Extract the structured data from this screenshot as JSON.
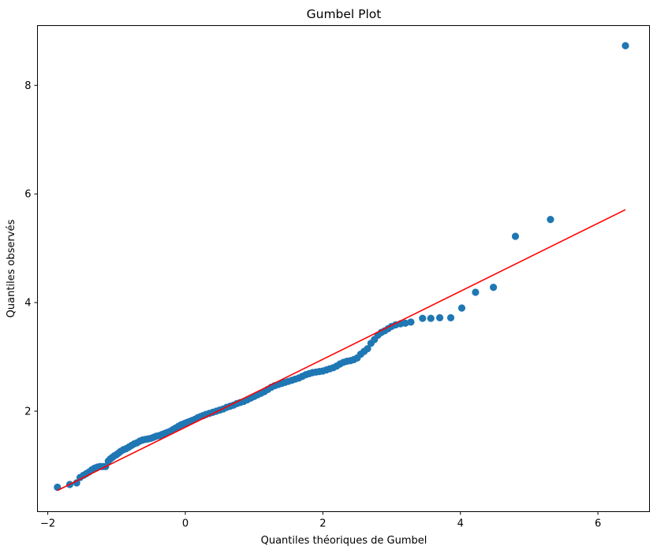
{
  "chart_data": {
    "type": "scatter",
    "title": "Gumbel Plot",
    "xlabel": "Quantiles théoriques de Gumbel",
    "ylabel": "Quantiles observés",
    "xlim": [
      -2.15,
      6.75
    ],
    "ylim": [
      0.15,
      9.1
    ],
    "xticks": [
      -2,
      0,
      2,
      4,
      6
    ],
    "yticks": [
      2,
      4,
      6,
      8
    ],
    "grid": false,
    "colors": {
      "points": "#1f77b4",
      "fit_line": "#ff0000",
      "axes": "#000000"
    },
    "series": [
      {
        "kind": "points",
        "x": [
          -1.86,
          -1.68,
          -1.58,
          -1.53,
          -1.48,
          -1.44,
          -1.4,
          -1.36,
          -1.32,
          -1.28,
          -1.24,
          -1.2,
          -1.16,
          -1.12,
          -1.09,
          -1.06,
          -1.03,
          -1.0,
          -0.97,
          -0.94,
          -0.9,
          -0.86,
          -0.82,
          -0.78,
          -0.74,
          -0.7,
          -0.66,
          -0.62,
          -0.58,
          -0.54,
          -0.5,
          -0.46,
          -0.42,
          -0.38,
          -0.34,
          -0.3,
          -0.26,
          -0.22,
          -0.18,
          -0.14,
          -0.1,
          -0.06,
          -0.02,
          0.02,
          0.06,
          0.1,
          0.14,
          0.18,
          0.22,
          0.26,
          0.3,
          0.35,
          0.4,
          0.45,
          0.5,
          0.55,
          0.6,
          0.65,
          0.7,
          0.75,
          0.8,
          0.85,
          0.9,
          0.95,
          1.0,
          1.05,
          1.1,
          1.15,
          1.2,
          1.25,
          1.3,
          1.35,
          1.4,
          1.45,
          1.5,
          1.55,
          1.6,
          1.65,
          1.7,
          1.75,
          1.8,
          1.85,
          1.9,
          1.95,
          2.0,
          2.05,
          2.1,
          2.15,
          2.2,
          2.25,
          2.3,
          2.35,
          2.4,
          2.45,
          2.5,
          2.55,
          2.6,
          2.65,
          2.7,
          2.75,
          2.8,
          2.85,
          2.9,
          2.95,
          3.0,
          3.06,
          3.13,
          3.2,
          3.28,
          3.45,
          3.57,
          3.7,
          3.86,
          4.02,
          4.22,
          4.48,
          4.8,
          5.31,
          6.4
        ],
        "y": [
          0.6,
          0.65,
          0.68,
          0.78,
          0.82,
          0.85,
          0.88,
          0.92,
          0.95,
          0.97,
          0.98,
          0.98,
          0.98,
          1.08,
          1.12,
          1.15,
          1.18,
          1.2,
          1.23,
          1.26,
          1.29,
          1.31,
          1.34,
          1.37,
          1.4,
          1.42,
          1.45,
          1.47,
          1.48,
          1.49,
          1.5,
          1.52,
          1.54,
          1.55,
          1.57,
          1.59,
          1.61,
          1.63,
          1.66,
          1.69,
          1.72,
          1.75,
          1.77,
          1.79,
          1.81,
          1.83,
          1.85,
          1.88,
          1.9,
          1.92,
          1.94,
          1.96,
          1.98,
          2.0,
          2.02,
          2.04,
          2.07,
          2.09,
          2.11,
          2.14,
          2.16,
          2.18,
          2.21,
          2.24,
          2.27,
          2.3,
          2.33,
          2.36,
          2.4,
          2.44,
          2.47,
          2.49,
          2.51,
          2.53,
          2.55,
          2.57,
          2.59,
          2.61,
          2.64,
          2.67,
          2.69,
          2.71,
          2.72,
          2.73,
          2.74,
          2.76,
          2.78,
          2.8,
          2.83,
          2.87,
          2.9,
          2.92,
          2.93,
          2.95,
          2.98,
          3.05,
          3.1,
          3.15,
          3.25,
          3.32,
          3.4,
          3.45,
          3.48,
          3.52,
          3.56,
          3.59,
          3.61,
          3.62,
          3.64,
          3.71,
          3.71,
          3.72,
          3.72,
          3.9,
          4.19,
          4.28,
          5.22,
          5.53,
          8.73
        ]
      },
      {
        "kind": "fit-line",
        "x": [
          -1.86,
          6.4
        ],
        "y": [
          0.54,
          5.71
        ]
      }
    ]
  }
}
